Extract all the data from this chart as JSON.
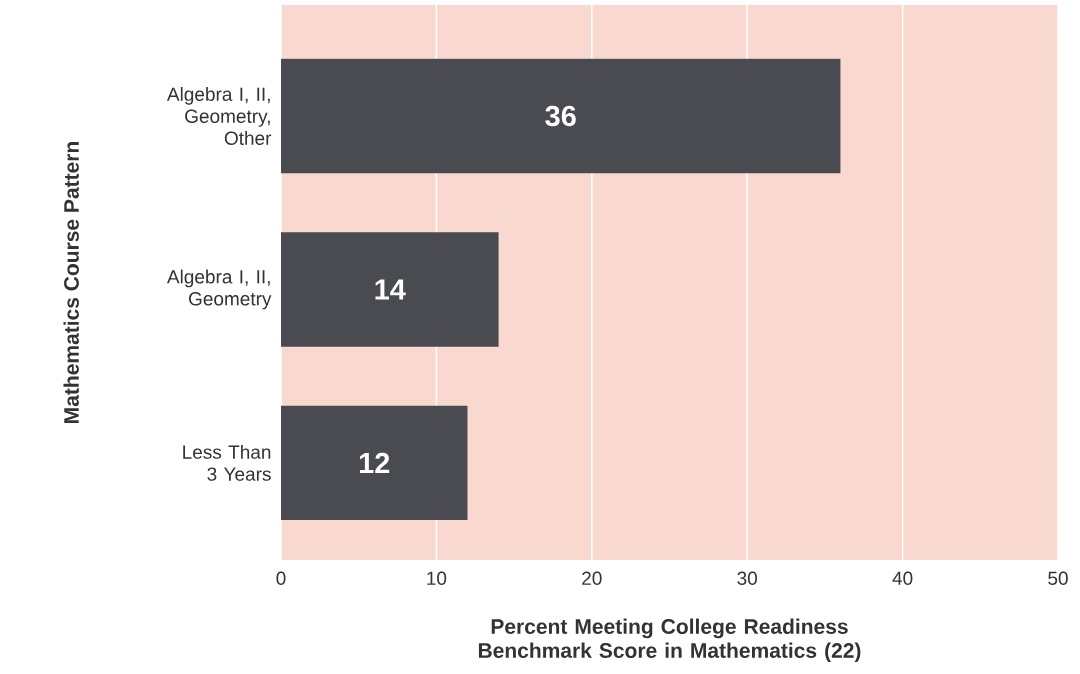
{
  "chart_data": {
    "type": "bar",
    "orientation": "horizontal",
    "categories": [
      "Algebra I, II, Geometry, Other",
      "Algebra I, II, Geometry",
      "Less Than 3 Years"
    ],
    "values": [
      36,
      14,
      12
    ],
    "color": "#4a4b50",
    "value_labels": [
      "36",
      "14",
      "12"
    ],
    "xlabel": "Percent Meeting College Readiness Benchmark Score in Mathematics (22)",
    "ylabel": "Mathematics Course Pattern",
    "xlim": [
      0,
      50
    ],
    "xticks": [
      0,
      10,
      20,
      30,
      40,
      50
    ],
    "grid": "x"
  }
}
